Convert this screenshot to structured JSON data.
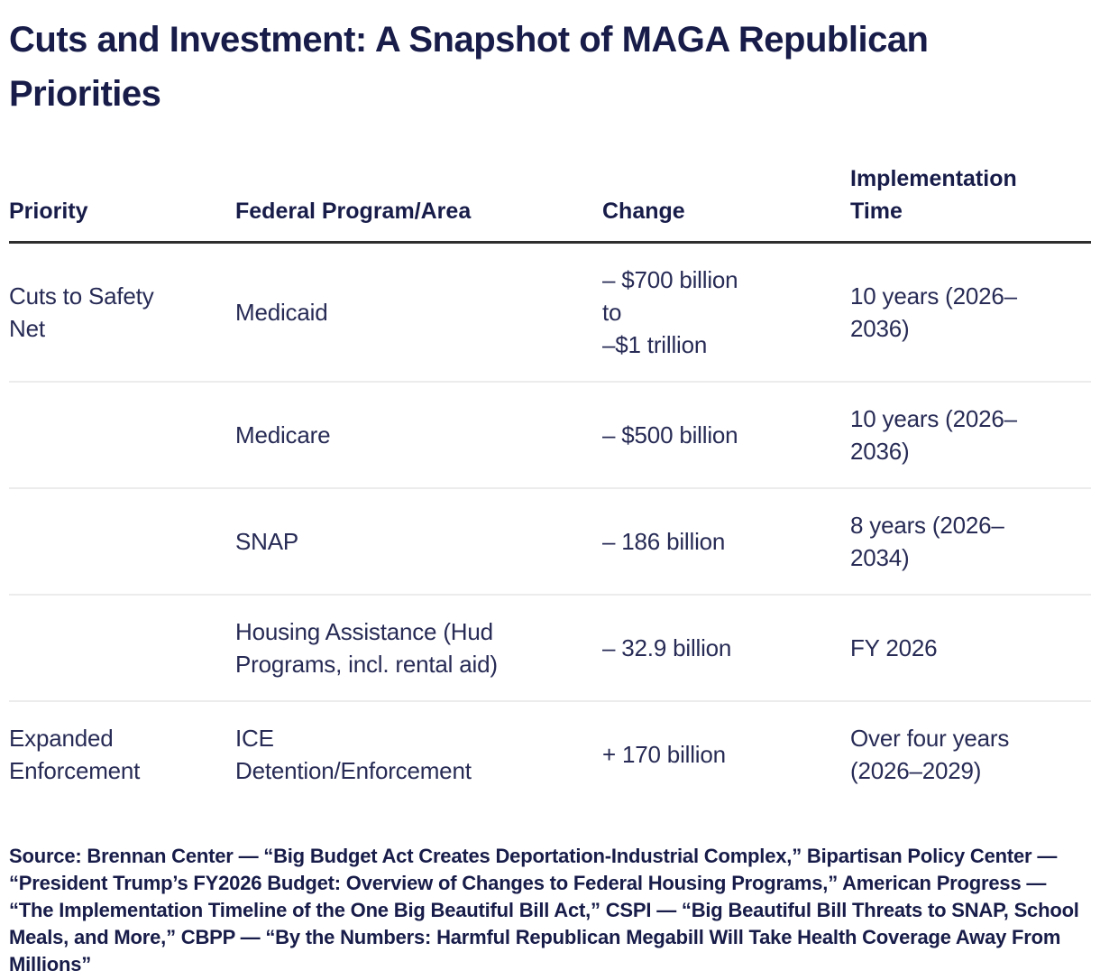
{
  "title": "Cuts and Investment: A Snapshot of MAGA Republican Priorities",
  "colors": {
    "heading_text": "#171c49",
    "body_text": "#272b55",
    "header_rule": "#2e2e2e",
    "row_separator": "#ececec",
    "background": "#ffffff"
  },
  "table": {
    "headers": [
      "Priority",
      "Federal Program/Area",
      "Change",
      "Implementation Time"
    ],
    "rows": [
      {
        "priority": "Cuts to Safety\nNet",
        "program": "Medicaid",
        "change": "– $700 billion\nto\n–$1 trillion",
        "time": "10 years (2026–\n2036)"
      },
      {
        "priority": "",
        "program": "Medicare",
        "change": "– $500 billion",
        "time": "10 years (2026–\n2036)"
      },
      {
        "priority": "",
        "program": "SNAP",
        "change": "– 186 billion",
        "time": "8 years (2026–\n2034)"
      },
      {
        "priority": "",
        "program": "Housing Assistance (Hud\nPrograms, incl. rental aid)",
        "change": "– 32.9 billion",
        "time": "FY 2026"
      },
      {
        "priority": "Expanded\nEnforcement",
        "program": "ICE\nDetention/Enforcement",
        "change": "+ 170 billion",
        "time": "Over four years\n(2026–2029)"
      }
    ]
  },
  "source": "Source: Brennan Center — “Big Budget Act Creates Deportation-Industrial Complex,” Bipartisan Policy Center — “President Trump’s FY2026 Budget: Overview of Changes to Federal Housing Programs,” American Progress — “The Implementation Timeline of the One Big Beautiful Bill Act,” CSPI — “Big Beautiful Bill Threats to SNAP, School Meals, and More,” CBPP — “By the Numbers: Harmful Republican Megabill Will Take Health Coverage Away From Millions”"
}
